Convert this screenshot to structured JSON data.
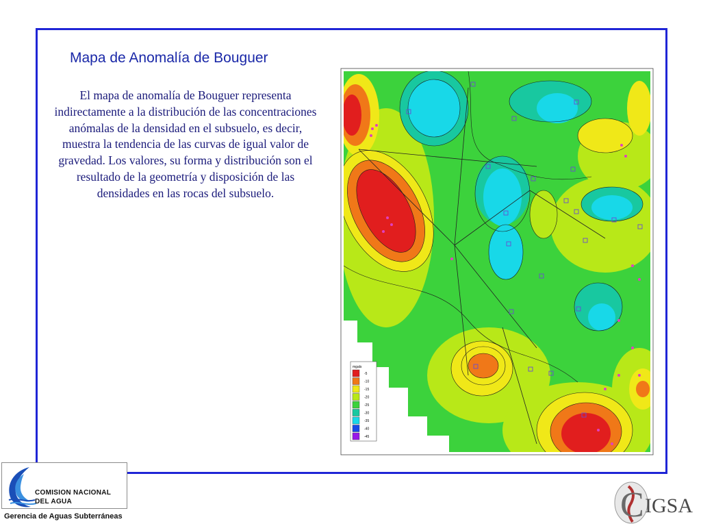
{
  "slide": {
    "title": "Mapa de Anomalía de Bouguer",
    "description": "El mapa de anomalía de Bouguer representa indirectamente a la distribución de las concentraciones anómalas de la densidad en el subsuelo, es decir, muestra la tendencia de las curvas de igual valor de gravedad. Los valores, su forma y distribución son el resultado de la geometría y disposición de las densidades en las rocas del subsuelo.",
    "border_color": "#1f25d6"
  },
  "map": {
    "legend_title": "mgals",
    "legend": [
      {
        "label": "-5",
        "color": "#e11e1e"
      },
      {
        "label": "-10",
        "color": "#f07818"
      },
      {
        "label": "-15",
        "color": "#f0e818"
      },
      {
        "label": "-20",
        "color": "#b8e818"
      },
      {
        "label": "-25",
        "color": "#3cd23c"
      },
      {
        "label": "-30",
        "color": "#18c8a0"
      },
      {
        "label": "-35",
        "color": "#18d8e8"
      },
      {
        "label": "-40",
        "color": "#1848e8"
      },
      {
        "label": "-45",
        "color": "#9818e8"
      }
    ]
  },
  "logos": {
    "cna_line1": "COMISION NACIONAL",
    "cna_line2": "DEL  AGUA",
    "cna_subtitle": "Gerencia de Aguas Subterráneas",
    "cigsa_text": "IGSA",
    "cigsa_letter": "C"
  }
}
